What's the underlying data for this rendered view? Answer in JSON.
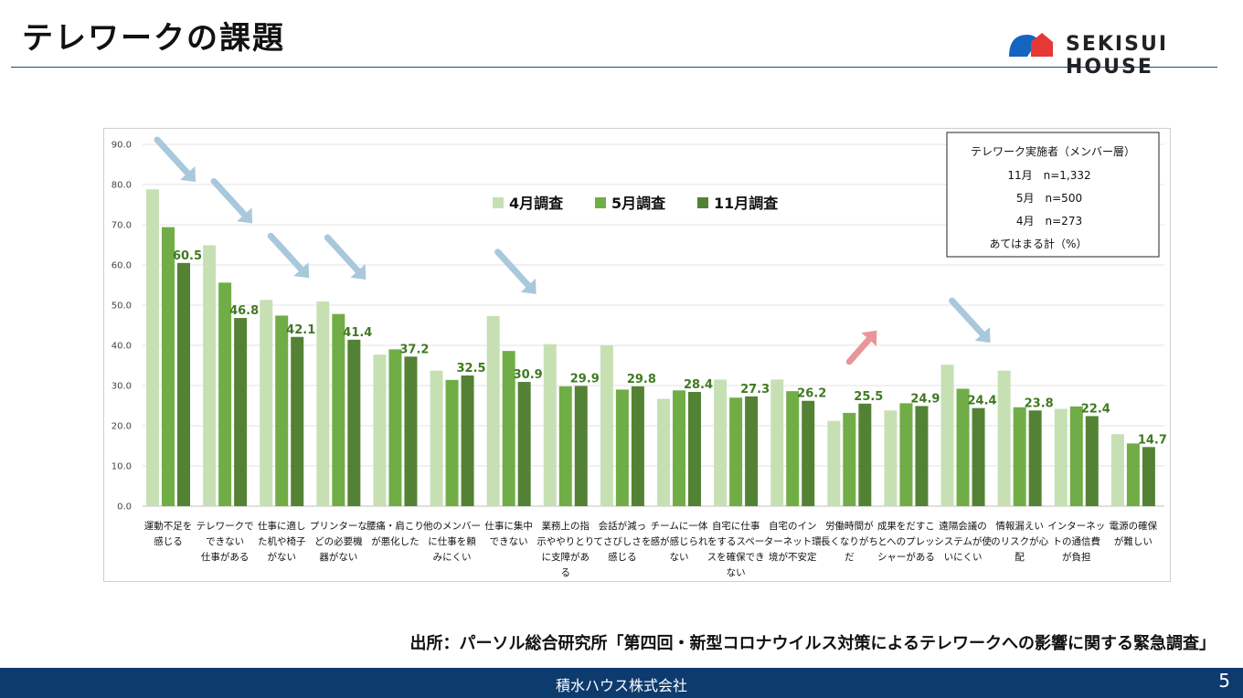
{
  "header": {
    "title": "テレワークの課題",
    "logo_text": "SEKISUI HOUSE"
  },
  "chart_data": {
    "type": "bar",
    "ylim": [
      0,
      90
    ],
    "yticks": [
      "0.0",
      "10.0",
      "20.0",
      "30.0",
      "40.0",
      "50.0",
      "60.0",
      "70.0",
      "80.0",
      "90.0"
    ],
    "grid": true,
    "categories": [
      [
        "運動不足を",
        "感じる"
      ],
      [
        "テレワークで",
        "できない",
        "仕事がある"
      ],
      [
        "仕事に適し",
        "た机や椅子",
        "がない"
      ],
      [
        "プリンターな",
        "どの必要機",
        "器がない"
      ],
      [
        "腰痛・肩こり",
        "が悪化した"
      ],
      [
        "他のメンバー",
        "に仕事を頼",
        "みにくい"
      ],
      [
        "仕事に集中",
        "できない"
      ],
      [
        "業務上の指",
        "示ややりとり",
        "に支障があ",
        "る"
      ],
      [
        "会話が減っ",
        "てさびしさを",
        "感じる"
      ],
      [
        "チームに一体",
        "感が感じられ",
        "ない"
      ],
      [
        "自宅に仕事",
        "をするスペー",
        "スを確保でき",
        "ない"
      ],
      [
        "自宅のイン",
        "ターネット環",
        "境が不安定"
      ],
      [
        "労働時間が",
        "長くなりがち",
        "だ"
      ],
      [
        "成果をだすこ",
        "とへのプレッ",
        "シャーがある"
      ],
      [
        "遠隔会議の",
        "システムが使",
        "いにくい"
      ],
      [
        "情報漏えい",
        "のリスクが心",
        "配"
      ],
      [
        "インターネッ",
        "トの通信費",
        "が負担"
      ],
      [
        "電源の確保",
        "が難しい"
      ]
    ],
    "series": [
      {
        "name": "4月調査",
        "color": "#c6e0b4",
        "values": [
          78.8,
          64.9,
          51.3,
          50.9,
          37.7,
          33.7,
          47.3,
          40.3,
          40.0,
          26.7,
          31.5,
          31.5,
          21.2,
          23.8,
          35.2,
          33.7,
          24.2,
          17.9
        ]
      },
      {
        "name": "5月調査",
        "color": "#70ad47",
        "values": [
          69.4,
          55.6,
          47.4,
          47.8,
          39.0,
          31.4,
          38.6,
          29.8,
          29.0,
          28.8,
          27.0,
          28.6,
          23.2,
          25.6,
          29.2,
          24.6,
          24.8,
          15.6
        ]
      },
      {
        "name": "11月調査",
        "color": "#548235",
        "values": [
          60.5,
          46.8,
          42.1,
          41.4,
          37.2,
          32.5,
          30.9,
          29.9,
          29.8,
          28.4,
          27.3,
          26.2,
          25.5,
          24.9,
          24.4,
          23.8,
          22.4,
          14.7
        ]
      }
    ],
    "value_labels": [
      "60.5",
      "46.8",
      "42.1",
      "41.4",
      "37.2",
      "32.5",
      "30.9",
      "29.9",
      "29.8",
      "28.4",
      "27.3",
      "26.2",
      "25.5",
      "24.9",
      "24.4",
      "23.8",
      "22.4",
      "14.7"
    ],
    "arrows": [
      {
        "category_index": 0,
        "direction": "down",
        "color": "#a9c8dc"
      },
      {
        "category_index": 1,
        "direction": "down",
        "color": "#a9c8dc"
      },
      {
        "category_index": 2,
        "direction": "down",
        "color": "#a9c8dc"
      },
      {
        "category_index": 3,
        "direction": "down",
        "color": "#a9c8dc"
      },
      {
        "category_index": 6,
        "direction": "down",
        "color": "#a9c8dc"
      },
      {
        "category_index": 12,
        "direction": "up",
        "color": "#e8969a"
      },
      {
        "category_index": 14,
        "direction": "down",
        "color": "#a9c8dc"
      }
    ],
    "legend_position": "top-center",
    "info_box": {
      "title": "テレワーク実施者（メンバー層）",
      "lines": [
        "11月　n=1,332",
        "5月　n=500",
        "4月　n=273"
      ],
      "note": "あてはまる計（%）"
    }
  },
  "source": "出所：パーソル総合研究所「第四回・新型コロナウイルス対策によるテレワークへの影響に関する緊急調査」",
  "footer": {
    "company": "積水ハウス株式会社",
    "page_number": "5"
  }
}
